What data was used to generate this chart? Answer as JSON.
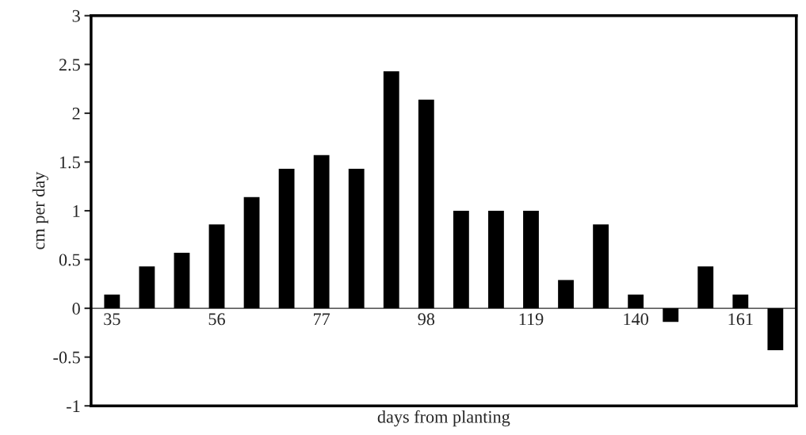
{
  "chart_data": {
    "type": "bar",
    "categories": [
      "35",
      null,
      null,
      "56",
      null,
      null,
      "77",
      null,
      null,
      "98",
      null,
      null,
      "119",
      null,
      null,
      "140",
      null,
      null,
      "161",
      null
    ],
    "values": [
      0.14,
      0.43,
      0.57,
      0.86,
      1.14,
      1.43,
      1.57,
      1.43,
      2.43,
      2.14,
      1.0,
      1.0,
      1.0,
      0.29,
      0.86,
      0.14,
      -0.14,
      0.43,
      0.14,
      -0.43
    ],
    "color": "#000000",
    "xlabel": "days from planting",
    "ylabel": "cm per day",
    "ylim": [
      -1,
      3
    ],
    "yticks": [
      -1,
      -0.5,
      0,
      0.5,
      1,
      1.5,
      2,
      2.5,
      3
    ],
    "grid": false
  }
}
